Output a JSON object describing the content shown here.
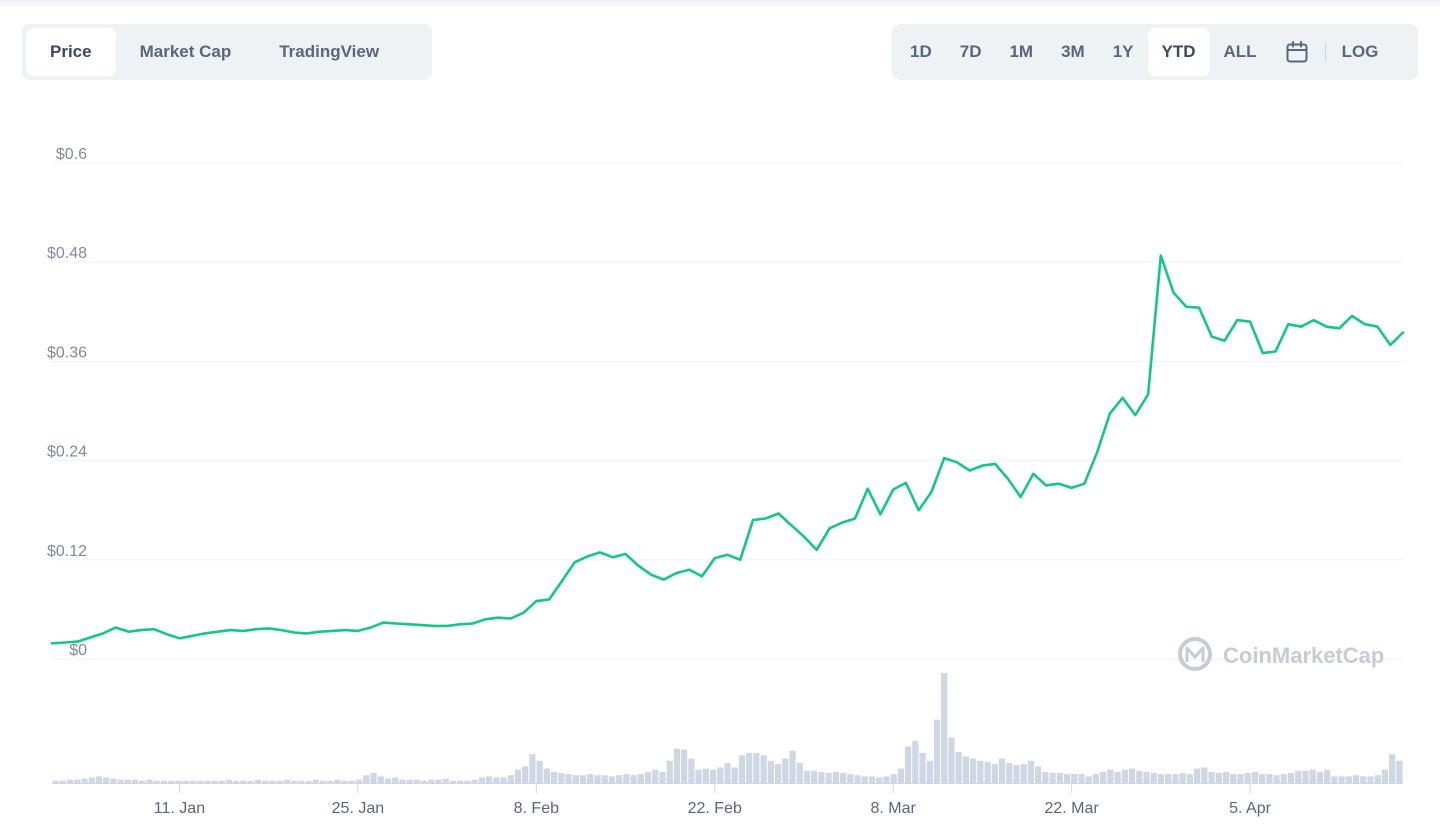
{
  "tabs": [
    {
      "label": "Price",
      "active": true
    },
    {
      "label": "Market Cap",
      "active": false
    },
    {
      "label": "TradingView",
      "active": false
    }
  ],
  "ranges": [
    {
      "label": "1D",
      "active": false
    },
    {
      "label": "7D",
      "active": false
    },
    {
      "label": "1M",
      "active": false
    },
    {
      "label": "3M",
      "active": false
    },
    {
      "label": "1Y",
      "active": false
    },
    {
      "label": "YTD",
      "active": true
    },
    {
      "label": "ALL",
      "active": false
    }
  ],
  "calendar_icon": "calendar-icon",
  "log_label": "LOG",
  "watermark": "CoinMarketCap",
  "colors": {
    "line": "#16c784",
    "volume": "#cfd6e4",
    "grid": "#eff2f5",
    "axis_text": "#808a9d",
    "active_text": "#3a4a63",
    "inactive_text": "#58667e",
    "watermark": "#c5ccd8"
  },
  "chart_data": {
    "type": "line",
    "ylim": [
      0,
      0.6
    ],
    "y_ticks": [
      {
        "value": 0,
        "label": "$0"
      },
      {
        "value": 0.12,
        "label": "$0.12"
      },
      {
        "value": 0.24,
        "label": "$0.24"
      },
      {
        "value": 0.36,
        "label": "$0.36"
      },
      {
        "value": 0.48,
        "label": "$0.48"
      },
      {
        "value": 0.6,
        "label": "$0.6"
      }
    ],
    "x_ticks": [
      {
        "date": "2021-01-11",
        "label": "11. Jan"
      },
      {
        "date": "2021-01-25",
        "label": "25. Jan"
      },
      {
        "date": "2021-02-08",
        "label": "8. Feb"
      },
      {
        "date": "2021-02-22",
        "label": "22. Feb"
      },
      {
        "date": "2021-03-08",
        "label": "8. Mar"
      },
      {
        "date": "2021-03-22",
        "label": "22. Mar"
      },
      {
        "date": "2021-04-05",
        "label": "5. Apr"
      }
    ],
    "x_range": [
      "2021-01-01",
      "2021-04-17"
    ],
    "series": [
      {
        "kind": "price",
        "points": [
          [
            "2021-01-01",
            0.019
          ],
          [
            "2021-01-02",
            0.02
          ],
          [
            "2021-01-03",
            0.021
          ],
          [
            "2021-01-04",
            0.026
          ],
          [
            "2021-01-05",
            0.031
          ],
          [
            "2021-01-06",
            0.038
          ],
          [
            "2021-01-07",
            0.033
          ],
          [
            "2021-01-08",
            0.035
          ],
          [
            "2021-01-09",
            0.036
          ],
          [
            "2021-01-10",
            0.03
          ],
          [
            "2021-01-11",
            0.025
          ],
          [
            "2021-01-12",
            0.028
          ],
          [
            "2021-01-13",
            0.031
          ],
          [
            "2021-01-14",
            0.033
          ],
          [
            "2021-01-15",
            0.035
          ],
          [
            "2021-01-16",
            0.034
          ],
          [
            "2021-01-17",
            0.036
          ],
          [
            "2021-01-18",
            0.037
          ],
          [
            "2021-01-19",
            0.035
          ],
          [
            "2021-01-20",
            0.032
          ],
          [
            "2021-01-21",
            0.031
          ],
          [
            "2021-01-22",
            0.033
          ],
          [
            "2021-01-23",
            0.034
          ],
          [
            "2021-01-24",
            0.035
          ],
          [
            "2021-01-25",
            0.034
          ],
          [
            "2021-01-26",
            0.038
          ],
          [
            "2021-01-27",
            0.044
          ],
          [
            "2021-01-28",
            0.043
          ],
          [
            "2021-01-29",
            0.042
          ],
          [
            "2021-01-30",
            0.041
          ],
          [
            "2021-01-31",
            0.04
          ],
          [
            "2021-02-01",
            0.04
          ],
          [
            "2021-02-02",
            0.042
          ],
          [
            "2021-02-03",
            0.043
          ],
          [
            "2021-02-04",
            0.048
          ],
          [
            "2021-02-05",
            0.05
          ],
          [
            "2021-02-06",
            0.049
          ],
          [
            "2021-02-07",
            0.056
          ],
          [
            "2021-02-08",
            0.07
          ],
          [
            "2021-02-09",
            0.072
          ],
          [
            "2021-02-10",
            0.094
          ],
          [
            "2021-02-11",
            0.117
          ],
          [
            "2021-02-12",
            0.124
          ],
          [
            "2021-02-13",
            0.129
          ],
          [
            "2021-02-14",
            0.123
          ],
          [
            "2021-02-15",
            0.127
          ],
          [
            "2021-02-16",
            0.113
          ],
          [
            "2021-02-17",
            0.102
          ],
          [
            "2021-02-18",
            0.096
          ],
          [
            "2021-02-19",
            0.104
          ],
          [
            "2021-02-20",
            0.108
          ],
          [
            "2021-02-21",
            0.1
          ],
          [
            "2021-02-22",
            0.122
          ],
          [
            "2021-02-23",
            0.126
          ],
          [
            "2021-02-24",
            0.12
          ],
          [
            "2021-02-25",
            0.168
          ],
          [
            "2021-02-26",
            0.17
          ],
          [
            "2021-02-27",
            0.176
          ],
          [
            "2021-02-28",
            0.162
          ],
          [
            "2021-03-01",
            0.148
          ],
          [
            "2021-03-02",
            0.132
          ],
          [
            "2021-03-03",
            0.158
          ],
          [
            "2021-03-04",
            0.165
          ],
          [
            "2021-03-05",
            0.17
          ],
          [
            "2021-03-06",
            0.206
          ],
          [
            "2021-03-07",
            0.175
          ],
          [
            "2021-03-08",
            0.205
          ],
          [
            "2021-03-09",
            0.213
          ],
          [
            "2021-03-10",
            0.18
          ],
          [
            "2021-03-11",
            0.202
          ],
          [
            "2021-03-12",
            0.243
          ],
          [
            "2021-03-13",
            0.238
          ],
          [
            "2021-03-14",
            0.228
          ],
          [
            "2021-03-15",
            0.234
          ],
          [
            "2021-03-16",
            0.236
          ],
          [
            "2021-03-17",
            0.218
          ],
          [
            "2021-03-18",
            0.196
          ],
          [
            "2021-03-19",
            0.224
          ],
          [
            "2021-03-20",
            0.21
          ],
          [
            "2021-03-21",
            0.212
          ],
          [
            "2021-03-22",
            0.207
          ],
          [
            "2021-03-23",
            0.212
          ],
          [
            "2021-03-24",
            0.25
          ],
          [
            "2021-03-25",
            0.297
          ],
          [
            "2021-03-26",
            0.316
          ],
          [
            "2021-03-27",
            0.295
          ],
          [
            "2021-03-28",
            0.32
          ],
          [
            "2021-03-29",
            0.488
          ],
          [
            "2021-03-30",
            0.443
          ],
          [
            "2021-03-31",
            0.426
          ],
          [
            "2021-04-01",
            0.425
          ],
          [
            "2021-04-02",
            0.39
          ],
          [
            "2021-04-03",
            0.385
          ],
          [
            "2021-04-04",
            0.41
          ],
          [
            "2021-04-05",
            0.408
          ],
          [
            "2021-04-06",
            0.37
          ],
          [
            "2021-04-07",
            0.372
          ],
          [
            "2021-04-08",
            0.405
          ],
          [
            "2021-04-09",
            0.402
          ],
          [
            "2021-04-10",
            0.41
          ],
          [
            "2021-04-11",
            0.402
          ],
          [
            "2021-04-12",
            0.4
          ],
          [
            "2021-04-13",
            0.415
          ],
          [
            "2021-04-14",
            0.405
          ],
          [
            "2021-04-15",
            0.402
          ],
          [
            "2021-04-16",
            0.38
          ],
          [
            "2021-04-17",
            0.395
          ]
        ]
      }
    ],
    "volume_relative": [
      0.02,
      0.02,
      0.03,
      0.03,
      0.04,
      0.05,
      0.06,
      0.05,
      0.04,
      0.03,
      0.03,
      0.03,
      0.02,
      0.03,
      0.02,
      0.02,
      0.02,
      0.02,
      0.02,
      0.02,
      0.02,
      0.02,
      0.02,
      0.02,
      0.03,
      0.02,
      0.02,
      0.02,
      0.03,
      0.02,
      0.02,
      0.02,
      0.03,
      0.02,
      0.02,
      0.02,
      0.03,
      0.02,
      0.02,
      0.03,
      0.02,
      0.02,
      0.03,
      0.07,
      0.09,
      0.06,
      0.04,
      0.05,
      0.03,
      0.03,
      0.03,
      0.02,
      0.03,
      0.03,
      0.04,
      0.02,
      0.02,
      0.02,
      0.03,
      0.05,
      0.06,
      0.05,
      0.05,
      0.07,
      0.12,
      0.15,
      0.26,
      0.2,
      0.13,
      0.1,
      0.09,
      0.08,
      0.07,
      0.07,
      0.08,
      0.07,
      0.07,
      0.06,
      0.07,
      0.08,
      0.07,
      0.08,
      0.1,
      0.12,
      0.1,
      0.2,
      0.31,
      0.3,
      0.22,
      0.12,
      0.13,
      0.12,
      0.14,
      0.18,
      0.14,
      0.25,
      0.27,
      0.27,
      0.25,
      0.2,
      0.17,
      0.22,
      0.29,
      0.18,
      0.11,
      0.11,
      0.1,
      0.09,
      0.1,
      0.09,
      0.08,
      0.07,
      0.06,
      0.06,
      0.05,
      0.06,
      0.08,
      0.13,
      0.33,
      0.38,
      0.27,
      0.2,
      0.57,
      0.99,
      0.41,
      0.28,
      0.24,
      0.22,
      0.2,
      0.19,
      0.17,
      0.22,
      0.18,
      0.16,
      0.17,
      0.2,
      0.15,
      0.1,
      0.09,
      0.09,
      0.08,
      0.08,
      0.08,
      0.06,
      0.08,
      0.1,
      0.12,
      0.1,
      0.12,
      0.13,
      0.11,
      0.1,
      0.09,
      0.08,
      0.08,
      0.08,
      0.09,
      0.08,
      0.13,
      0.14,
      0.1,
      0.09,
      0.1,
      0.08,
      0.08,
      0.09,
      0.1,
      0.08,
      0.08,
      0.07,
      0.08,
      0.09,
      0.11,
      0.11,
      0.12,
      0.1,
      0.12,
      0.06,
      0.06,
      0.06,
      0.07,
      0.06,
      0.06,
      0.07,
      0.12,
      0.26,
      0.2
    ]
  }
}
